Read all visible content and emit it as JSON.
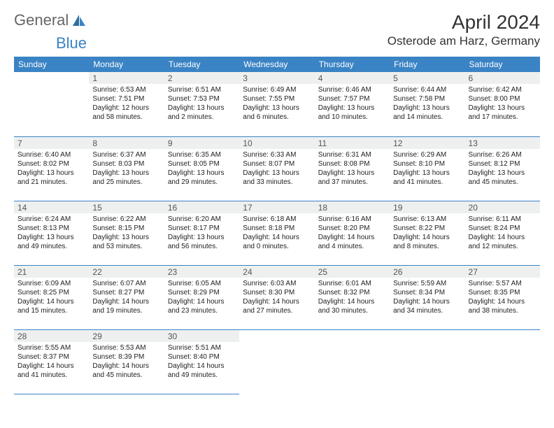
{
  "brand": {
    "part1": "General",
    "part2": "Blue"
  },
  "title": "April 2024",
  "location": "Osterode am Harz, Germany",
  "colors": {
    "headerBg": "#3a83c4",
    "headerText": "#ffffff",
    "dayStripBg": "#eef0f0",
    "border": "#3a83c4",
    "textPrimary": "#222222",
    "brandGray": "#666666",
    "brandBlue": "#3a83c4"
  },
  "typography": {
    "titleSize": 28,
    "locationSize": 17,
    "weekdayHeaderSize": 12,
    "dayNumSize": 12,
    "bodySize": 10
  },
  "weekdays": [
    "Sunday",
    "Monday",
    "Tuesday",
    "Wednesday",
    "Thursday",
    "Friday",
    "Saturday"
  ],
  "weeks": [
    [
      null,
      {
        "n": "1",
        "sr": "Sunrise: 6:53 AM",
        "ss": "Sunset: 7:51 PM",
        "d1": "Daylight: 12 hours",
        "d2": "and 58 minutes."
      },
      {
        "n": "2",
        "sr": "Sunrise: 6:51 AM",
        "ss": "Sunset: 7:53 PM",
        "d1": "Daylight: 13 hours",
        "d2": "and 2 minutes."
      },
      {
        "n": "3",
        "sr": "Sunrise: 6:49 AM",
        "ss": "Sunset: 7:55 PM",
        "d1": "Daylight: 13 hours",
        "d2": "and 6 minutes."
      },
      {
        "n": "4",
        "sr": "Sunrise: 6:46 AM",
        "ss": "Sunset: 7:57 PM",
        "d1": "Daylight: 13 hours",
        "d2": "and 10 minutes."
      },
      {
        "n": "5",
        "sr": "Sunrise: 6:44 AM",
        "ss": "Sunset: 7:58 PM",
        "d1": "Daylight: 13 hours",
        "d2": "and 14 minutes."
      },
      {
        "n": "6",
        "sr": "Sunrise: 6:42 AM",
        "ss": "Sunset: 8:00 PM",
        "d1": "Daylight: 13 hours",
        "d2": "and 17 minutes."
      }
    ],
    [
      {
        "n": "7",
        "sr": "Sunrise: 6:40 AM",
        "ss": "Sunset: 8:02 PM",
        "d1": "Daylight: 13 hours",
        "d2": "and 21 minutes."
      },
      {
        "n": "8",
        "sr": "Sunrise: 6:37 AM",
        "ss": "Sunset: 8:03 PM",
        "d1": "Daylight: 13 hours",
        "d2": "and 25 minutes."
      },
      {
        "n": "9",
        "sr": "Sunrise: 6:35 AM",
        "ss": "Sunset: 8:05 PM",
        "d1": "Daylight: 13 hours",
        "d2": "and 29 minutes."
      },
      {
        "n": "10",
        "sr": "Sunrise: 6:33 AM",
        "ss": "Sunset: 8:07 PM",
        "d1": "Daylight: 13 hours",
        "d2": "and 33 minutes."
      },
      {
        "n": "11",
        "sr": "Sunrise: 6:31 AM",
        "ss": "Sunset: 8:08 PM",
        "d1": "Daylight: 13 hours",
        "d2": "and 37 minutes."
      },
      {
        "n": "12",
        "sr": "Sunrise: 6:29 AM",
        "ss": "Sunset: 8:10 PM",
        "d1": "Daylight: 13 hours",
        "d2": "and 41 minutes."
      },
      {
        "n": "13",
        "sr": "Sunrise: 6:26 AM",
        "ss": "Sunset: 8:12 PM",
        "d1": "Daylight: 13 hours",
        "d2": "and 45 minutes."
      }
    ],
    [
      {
        "n": "14",
        "sr": "Sunrise: 6:24 AM",
        "ss": "Sunset: 8:13 PM",
        "d1": "Daylight: 13 hours",
        "d2": "and 49 minutes."
      },
      {
        "n": "15",
        "sr": "Sunrise: 6:22 AM",
        "ss": "Sunset: 8:15 PM",
        "d1": "Daylight: 13 hours",
        "d2": "and 53 minutes."
      },
      {
        "n": "16",
        "sr": "Sunrise: 6:20 AM",
        "ss": "Sunset: 8:17 PM",
        "d1": "Daylight: 13 hours",
        "d2": "and 56 minutes."
      },
      {
        "n": "17",
        "sr": "Sunrise: 6:18 AM",
        "ss": "Sunset: 8:18 PM",
        "d1": "Daylight: 14 hours",
        "d2": "and 0 minutes."
      },
      {
        "n": "18",
        "sr": "Sunrise: 6:16 AM",
        "ss": "Sunset: 8:20 PM",
        "d1": "Daylight: 14 hours",
        "d2": "and 4 minutes."
      },
      {
        "n": "19",
        "sr": "Sunrise: 6:13 AM",
        "ss": "Sunset: 8:22 PM",
        "d1": "Daylight: 14 hours",
        "d2": "and 8 minutes."
      },
      {
        "n": "20",
        "sr": "Sunrise: 6:11 AM",
        "ss": "Sunset: 8:24 PM",
        "d1": "Daylight: 14 hours",
        "d2": "and 12 minutes."
      }
    ],
    [
      {
        "n": "21",
        "sr": "Sunrise: 6:09 AM",
        "ss": "Sunset: 8:25 PM",
        "d1": "Daylight: 14 hours",
        "d2": "and 15 minutes."
      },
      {
        "n": "22",
        "sr": "Sunrise: 6:07 AM",
        "ss": "Sunset: 8:27 PM",
        "d1": "Daylight: 14 hours",
        "d2": "and 19 minutes."
      },
      {
        "n": "23",
        "sr": "Sunrise: 6:05 AM",
        "ss": "Sunset: 8:29 PM",
        "d1": "Daylight: 14 hours",
        "d2": "and 23 minutes."
      },
      {
        "n": "24",
        "sr": "Sunrise: 6:03 AM",
        "ss": "Sunset: 8:30 PM",
        "d1": "Daylight: 14 hours",
        "d2": "and 27 minutes."
      },
      {
        "n": "25",
        "sr": "Sunrise: 6:01 AM",
        "ss": "Sunset: 8:32 PM",
        "d1": "Daylight: 14 hours",
        "d2": "and 30 minutes."
      },
      {
        "n": "26",
        "sr": "Sunrise: 5:59 AM",
        "ss": "Sunset: 8:34 PM",
        "d1": "Daylight: 14 hours",
        "d2": "and 34 minutes."
      },
      {
        "n": "27",
        "sr": "Sunrise: 5:57 AM",
        "ss": "Sunset: 8:35 PM",
        "d1": "Daylight: 14 hours",
        "d2": "and 38 minutes."
      }
    ],
    [
      {
        "n": "28",
        "sr": "Sunrise: 5:55 AM",
        "ss": "Sunset: 8:37 PM",
        "d1": "Daylight: 14 hours",
        "d2": "and 41 minutes."
      },
      {
        "n": "29",
        "sr": "Sunrise: 5:53 AM",
        "ss": "Sunset: 8:39 PM",
        "d1": "Daylight: 14 hours",
        "d2": "and 45 minutes."
      },
      {
        "n": "30",
        "sr": "Sunrise: 5:51 AM",
        "ss": "Sunset: 8:40 PM",
        "d1": "Daylight: 14 hours",
        "d2": "and 49 minutes."
      },
      null,
      null,
      null,
      null
    ]
  ]
}
